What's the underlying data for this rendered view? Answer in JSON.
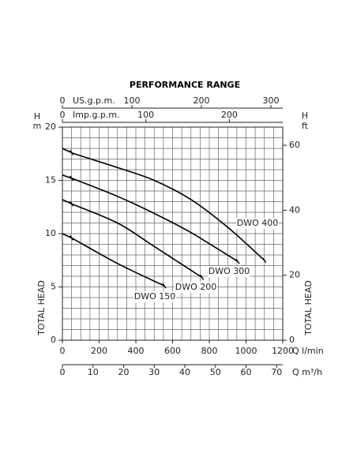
{
  "chart_data": {
    "type": "line",
    "title": "PERFORMANCE RANGE",
    "xlabel": "Q l/min",
    "xlim": [
      0,
      1200
    ],
    "xticks": [
      0,
      200,
      400,
      600,
      800,
      1000,
      1200
    ],
    "xgrid": [
      0,
      50,
      100,
      150,
      200,
      250,
      300,
      350,
      400,
      450,
      500,
      550,
      600,
      650,
      700,
      750,
      800,
      850,
      900,
      950,
      1000,
      1050,
      1100,
      1150,
      1200
    ],
    "ylabel": "H",
    "yunit": "m",
    "yname": "TOTAL HEAD",
    "ylim": [
      0,
      20
    ],
    "yticks": [
      0,
      5,
      10,
      15,
      20
    ],
    "ygrid": [
      0,
      1,
      2,
      3,
      4,
      5,
      6,
      7,
      8,
      9,
      10,
      11,
      12,
      13,
      14,
      15,
      16,
      17,
      18,
      19,
      20
    ],
    "y2label": "H",
    "y2unit": "ft",
    "y2name": "TOTAL HEAD",
    "y2lim": [
      0,
      65.6
    ],
    "y2ticks": [
      0,
      20,
      40,
      60
    ],
    "extra_x_axes": [
      {
        "label": "US.g.p.m.",
        "xlim": [
          0,
          317
        ],
        "xticks": [
          0,
          100,
          200,
          300
        ],
        "position": "top"
      },
      {
        "label": "Imp.g.p.m.",
        "xlim": [
          0,
          264
        ],
        "xticks": [
          0,
          100,
          200
        ],
        "position": "top"
      },
      {
        "label": "Q m³/h",
        "xlim": [
          0,
          72
        ],
        "xticks": [
          0,
          10,
          20,
          30,
          40,
          50,
          60,
          70
        ],
        "position": "bottom"
      }
    ],
    "series": [
      {
        "name": "DWO 400",
        "color": "#000000",
        "x": [
          0,
          50,
          100,
          300,
          500,
          700,
          900,
          1100
        ],
        "values": [
          18,
          17.6,
          17.3,
          16.2,
          15,
          13.2,
          10.6,
          7.5
        ]
      },
      {
        "name": "DWO 300",
        "color": "#000000",
        "x": [
          0,
          50,
          300,
          500,
          700,
          955
        ],
        "values": [
          15.5,
          15.2,
          13.5,
          11.9,
          10.1,
          7.4
        ]
      },
      {
        "name": "DWO 200",
        "color": "#000000",
        "x": [
          0,
          50,
          300,
          500,
          760
        ],
        "values": [
          13.2,
          12.8,
          11,
          8.8,
          5.9
        ]
      },
      {
        "name": "DWO 150",
        "color": "#000000",
        "x": [
          0,
          50,
          300,
          555
        ],
        "values": [
          10,
          9.6,
          7.2,
          5.1
        ]
      }
    ]
  }
}
